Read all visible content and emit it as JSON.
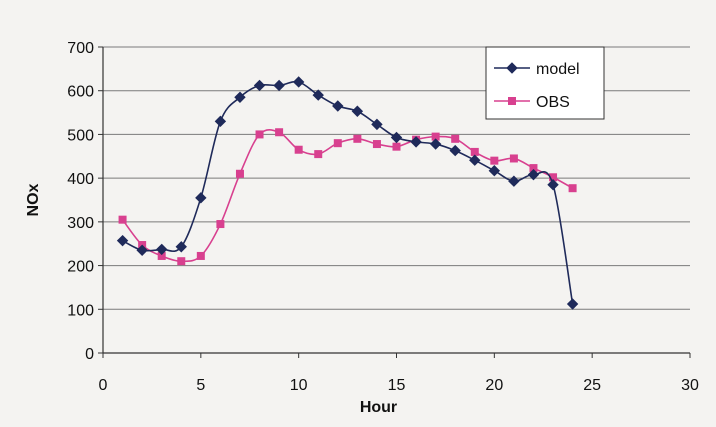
{
  "chart_data": {
    "type": "line",
    "title": "",
    "xlabel": "Hour",
    "ylabel": "NOx",
    "xlim": [
      0,
      30
    ],
    "ylim": [
      0,
      700
    ],
    "xticks": [
      0,
      5,
      10,
      15,
      20,
      25,
      30
    ],
    "yticks": [
      0,
      100,
      200,
      300,
      400,
      500,
      600,
      700
    ],
    "grid": "horizontal",
    "legend_position": "top-right",
    "series": [
      {
        "name": "model",
        "color": "#1f2a5a",
        "marker": "diamond",
        "x": [
          1,
          2,
          3,
          4,
          5,
          6,
          7,
          8,
          9,
          10,
          11,
          12,
          13,
          14,
          15,
          16,
          17,
          18,
          19,
          20,
          21,
          22,
          23,
          24
        ],
        "values": [
          257,
          235,
          237,
          243,
          355,
          530,
          585,
          612,
          612,
          620,
          590,
          565,
          553,
          523,
          493,
          483,
          478,
          463,
          441,
          417,
          393,
          408,
          385,
          112
        ]
      },
      {
        "name": "OBS",
        "color": "#d8408f",
        "marker": "square",
        "x": [
          1,
          2,
          3,
          4,
          5,
          6,
          7,
          8,
          9,
          10,
          11,
          12,
          13,
          14,
          15,
          16,
          17,
          18,
          19,
          20,
          21,
          22,
          23,
          24
        ],
        "values": [
          305,
          247,
          222,
          210,
          222,
          295,
          410,
          500,
          505,
          465,
          455,
          480,
          490,
          478,
          472,
          488,
          495,
          490,
          460,
          440,
          445,
          423,
          402,
          377
        ]
      }
    ]
  }
}
